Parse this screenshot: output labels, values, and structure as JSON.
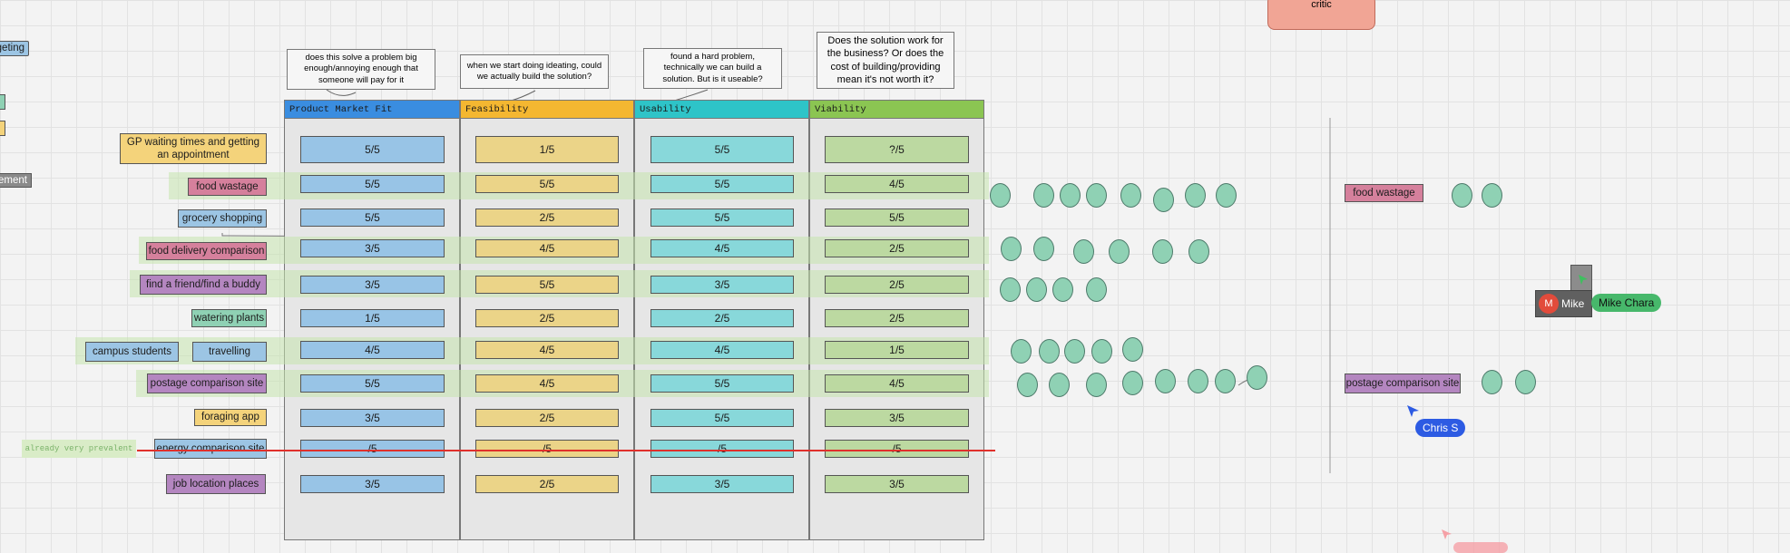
{
  "top_card": {
    "label": "critic"
  },
  "left_partial": {
    "budgeting": "geting",
    "management": "ement"
  },
  "questions": {
    "pmf": "does this solve a problem big enough/annoying enough that someone will pay for it",
    "feasibility": "when we start doing ideating, could we actually build the solution?",
    "usability": "found a hard problem, technically we can build a solution. But is it useable?",
    "viability": "Does the solution work for the business? Or does the cost of building/providing mean it's not worth it?"
  },
  "columns": [
    "Product Market Fit",
    "Feasibility",
    "Usability",
    "Viability"
  ],
  "colors": {
    "pmf": "#3a8de0",
    "feasibility": "#f4b731",
    "usability": "#2ec4c8",
    "viability": "#8bc552"
  },
  "rows": [
    {
      "label": "GP waiting times and getting an appointment",
      "scores": [
        "5/5",
        "1/5",
        "5/5",
        "?/5"
      ]
    },
    {
      "label": "food wastage",
      "scores": [
        "5/5",
        "5/5",
        "5/5",
        "4/5"
      ]
    },
    {
      "label": "grocery shopping",
      "scores": [
        "5/5",
        "2/5",
        "5/5",
        "5/5"
      ]
    },
    {
      "label": "food delivery comparison",
      "scores": [
        "3/5",
        "4/5",
        "4/5",
        "2/5"
      ]
    },
    {
      "label": "find a friend/find a buddy",
      "scores": [
        "3/5",
        "5/5",
        "3/5",
        "2/5"
      ]
    },
    {
      "label": "watering plants",
      "scores": [
        "1/5",
        "2/5",
        "2/5",
        "2/5"
      ]
    },
    {
      "label": "travelling",
      "extra": "campus students",
      "scores": [
        "4/5",
        "4/5",
        "4/5",
        "1/5"
      ]
    },
    {
      "label": "postage comparison site",
      "scores": [
        "5/5",
        "4/5",
        "5/5",
        "4/5"
      ]
    },
    {
      "label": "foraging app",
      "scores": [
        "3/5",
        "2/5",
        "5/5",
        "3/5"
      ]
    },
    {
      "label": "energy comparison site",
      "note": "already very prevalent",
      "scores": [
        "/5",
        "/5",
        "/5",
        "/5"
      ]
    },
    {
      "label": "job location places",
      "scores": [
        "3/5",
        "2/5",
        "3/5",
        "3/5"
      ]
    }
  ],
  "right_panel": {
    "food_wastage": "food wastage",
    "postage": "postage comparison site"
  },
  "users": {
    "mike": {
      "initial": "M",
      "name": "Mike"
    },
    "mike_chara": "Mike Chara",
    "chris": "Chris S"
  }
}
